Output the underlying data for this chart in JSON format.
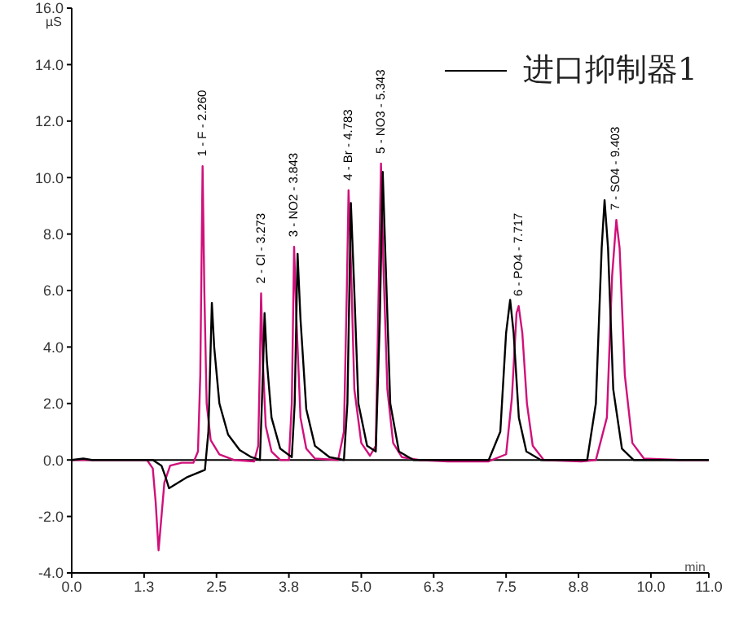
{
  "chart_data": {
    "type": "line",
    "xlabel": "min",
    "ylabel": "µS",
    "xlim": [
      0,
      11
    ],
    "xticks": [
      {
        "value": 0,
        "label": "0.0"
      },
      {
        "value": 1.25,
        "label": "1.3"
      },
      {
        "value": 2.5,
        "label": "2.5"
      },
      {
        "value": 3.75,
        "label": "3.8"
      },
      {
        "value": 5,
        "label": "5.0"
      },
      {
        "value": 6.25,
        "label": "6.3"
      },
      {
        "value": 7.5,
        "label": "7.5"
      },
      {
        "value": 8.75,
        "label": "8.8"
      },
      {
        "value": 10,
        "label": "10.0"
      },
      {
        "value": 11,
        "label": "11.0"
      }
    ],
    "ylim": [
      -4,
      16
    ],
    "yticks": [
      {
        "value": -4,
        "label": "-4.0"
      },
      {
        "value": -2,
        "label": "-2.0"
      },
      {
        "value": 0,
        "label": "0.0"
      },
      {
        "value": 2,
        "label": "2.0"
      },
      {
        "value": 4,
        "label": "4.0"
      },
      {
        "value": 6,
        "label": "6.0"
      },
      {
        "value": 8,
        "label": "8.0"
      },
      {
        "value": 10,
        "label": "10.0"
      },
      {
        "value": 12,
        "label": "12.0"
      },
      {
        "value": 14,
        "label": "14.0"
      },
      {
        "value": 16,
        "label": "16.0"
      }
    ],
    "legend": "top right",
    "marker": "none",
    "line_style": "solid",
    "ref_lines": [
      {
        "axis": "y",
        "value": 0,
        "color": "#000000"
      }
    ],
    "annotations": [
      {
        "text": "1 - F - 2.260",
        "x": 2.26,
        "y": 10.4
      },
      {
        "text": "2 - Cl - 3.273",
        "x": 3.273,
        "y": 5.9
      },
      {
        "text": "3 - NO2 - 3.843",
        "x": 3.843,
        "y": 7.55
      },
      {
        "text": "4 - Br - 4.783",
        "x": 4.783,
        "y": 9.55
      },
      {
        "text": "5 - NO3 - 5.343",
        "x": 5.343,
        "y": 10.5
      },
      {
        "text": "6 - PO4 - 7.717",
        "x": 7.717,
        "y": 5.45
      },
      {
        "text": "7 - SO4 - 9.403",
        "x": 9.403,
        "y": 8.5
      }
    ],
    "series": [
      {
        "color": "#d0107a",
        "x": [
          0,
          0.3,
          1.3,
          1.4,
          1.45,
          1.5,
          1.55,
          1.6,
          1.7,
          1.9,
          2.1,
          2.18,
          2.22,
          2.26,
          2.29,
          2.33,
          2.4,
          2.55,
          2.8,
          3.15,
          3.22,
          3.25,
          3.27,
          3.3,
          3.35,
          3.45,
          3.6,
          3.75,
          3.8,
          3.84,
          3.88,
          3.95,
          4.05,
          4.2,
          4.6,
          4.7,
          4.75,
          4.78,
          4.82,
          4.88,
          5.0,
          5.15,
          5.25,
          5.3,
          5.34,
          5.38,
          5.45,
          5.55,
          5.7,
          6.0,
          6.5,
          7.2,
          7.5,
          7.6,
          7.68,
          7.717,
          7.78,
          7.86,
          7.96,
          8.15,
          8.8,
          9.05,
          9.24,
          9.33,
          9.403,
          9.46,
          9.55,
          9.68,
          9.88,
          10.5,
          11
        ],
        "values": [
          0,
          0,
          0,
          -0.3,
          -1.5,
          -3.2,
          -2.0,
          -0.8,
          -0.2,
          -0.1,
          -0.1,
          0.3,
          3,
          10.4,
          6,
          2.0,
          0.7,
          0.2,
          0,
          -0.05,
          0.5,
          3.5,
          5.9,
          3.5,
          1.2,
          0.3,
          0,
          0,
          2,
          7.55,
          5,
          1.5,
          0.4,
          0.05,
          0,
          1.0,
          6,
          9.55,
          7,
          2.5,
          0.6,
          0.15,
          0.5,
          6,
          10.5,
          7,
          2.5,
          0.6,
          0.1,
          0,
          -0.05,
          -0.05,
          0.2,
          2.2,
          5.2,
          5.45,
          4.5,
          2,
          0.5,
          0,
          -0.05,
          0,
          1.5,
          6.5,
          8.5,
          7.5,
          3,
          0.6,
          0.05,
          0,
          0
        ]
      },
      {
        "name": "进口抑制器1",
        "color": "#000000",
        "x": [
          0,
          0.2,
          0.35,
          1.4,
          1.55,
          1.62,
          1.68,
          1.8,
          2.0,
          2.3,
          2.36,
          2.42,
          2.46,
          2.55,
          2.7,
          2.9,
          3.1,
          3.25,
          3.3,
          3.33,
          3.37,
          3.45,
          3.6,
          3.8,
          3.85,
          3.9,
          3.95,
          4.05,
          4.2,
          4.45,
          4.7,
          4.76,
          4.82,
          4.87,
          4.95,
          5.1,
          5.25,
          5.32,
          5.37,
          5.42,
          5.5,
          5.65,
          5.9,
          7.2,
          7.4,
          7.5,
          7.57,
          7.63,
          7.72,
          7.85,
          8.1,
          8.9,
          9.05,
          9.15,
          9.2,
          9.26,
          9.35,
          9.5,
          9.7,
          11
        ],
        "values": [
          0,
          0.05,
          0,
          0,
          -0.2,
          -0.6,
          -1.0,
          -0.85,
          -0.6,
          -0.35,
          1,
          5.56,
          4,
          2.0,
          0.9,
          0.35,
          0.1,
          0,
          3,
          5.2,
          3.5,
          1.5,
          0.4,
          0.1,
          2,
          7.3,
          5,
          1.8,
          0.5,
          0.1,
          0,
          2,
          9.1,
          6.5,
          2,
          0.5,
          0.3,
          5,
          10.2,
          7,
          2,
          0.3,
          0,
          0,
          1,
          4.5,
          5.67,
          4.5,
          1.5,
          0.3,
          0,
          0,
          2,
          7.5,
          9.2,
          7.5,
          2.5,
          0.4,
          0,
          0
        ]
      }
    ]
  }
}
